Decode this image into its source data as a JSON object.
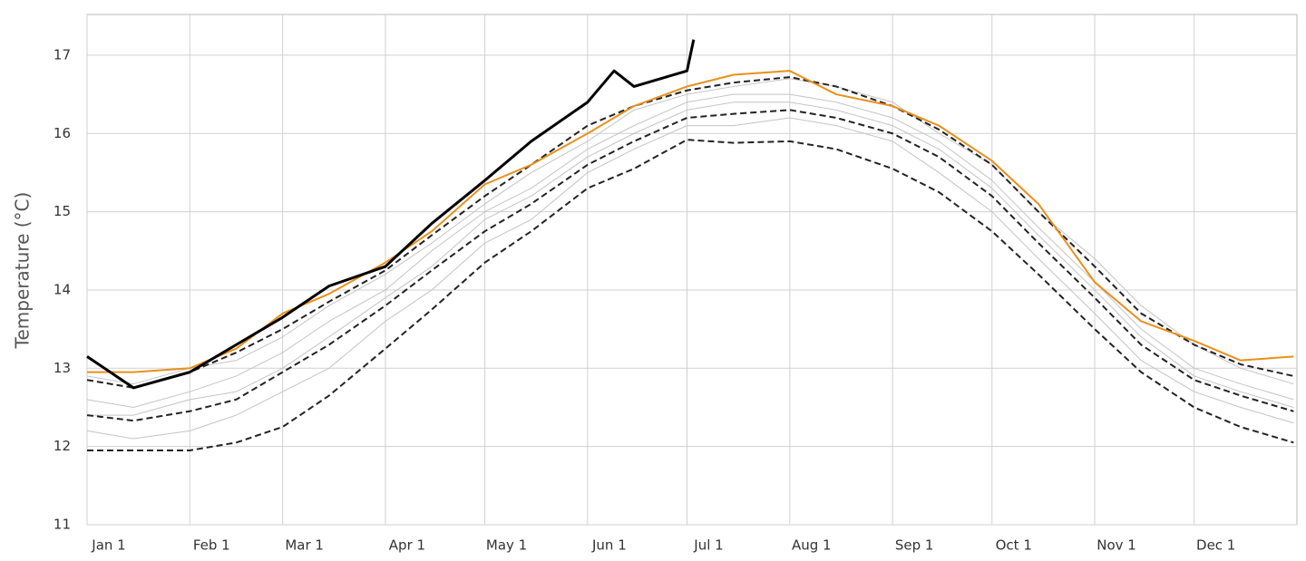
{
  "chart_data": {
    "type": "line",
    "ylabel": "Temperature (°C)",
    "x": [
      1,
      15,
      32,
      46,
      60,
      74,
      91,
      105,
      121,
      135,
      152,
      166,
      182,
      196,
      213,
      227,
      244,
      258,
      274,
      288,
      305,
      319,
      335,
      349,
      365
    ],
    "xlim": [
      1,
      366
    ],
    "xticks": [
      {
        "value": 1,
        "label": "Jan 1"
      },
      {
        "value": 32,
        "label": "Feb 1"
      },
      {
        "value": 60,
        "label": "Mar 1"
      },
      {
        "value": 91,
        "label": "Apr 1"
      },
      {
        "value": 121,
        "label": "May 1"
      },
      {
        "value": 152,
        "label": "Jun 1"
      },
      {
        "value": 182,
        "label": "Jul 1"
      },
      {
        "value": 213,
        "label": "Aug 1"
      },
      {
        "value": 244,
        "label": "Sep 1"
      },
      {
        "value": 274,
        "label": "Oct 1"
      },
      {
        "value": 305,
        "label": "Nov 1"
      },
      {
        "value": 335,
        "label": "Dec 1"
      }
    ],
    "ylim": [
      11,
      17.52
    ],
    "yticks": [
      11,
      12,
      13,
      14,
      15,
      16,
      17
    ],
    "grid": true,
    "series": [
      {
        "color": "#c4c4c4",
        "width": 1,
        "values": [
          12.6,
          12.5,
          12.7,
          12.9,
          13.2,
          13.6,
          14.0,
          14.5,
          15.0,
          15.3,
          15.8,
          16.1,
          16.4,
          16.5,
          16.5,
          16.4,
          16.2,
          15.9,
          15.4,
          14.8,
          14.1,
          13.5,
          13.0,
          12.8,
          12.6
        ]
      },
      {
        "color": "#c4c4c4",
        "width": 1,
        "values": [
          12.2,
          12.1,
          12.2,
          12.4,
          12.7,
          13.0,
          13.6,
          14.0,
          14.6,
          14.9,
          15.5,
          15.8,
          16.1,
          16.1,
          16.2,
          16.1,
          15.9,
          15.5,
          15.0,
          14.4,
          13.7,
          13.1,
          12.7,
          12.5,
          12.3
        ]
      },
      {
        "color": "#c4c4c4",
        "width": 1,
        "values": [
          12.9,
          12.8,
          13.0,
          13.1,
          13.4,
          13.8,
          14.2,
          14.6,
          15.1,
          15.5,
          15.9,
          16.3,
          16.5,
          16.6,
          16.7,
          16.6,
          16.4,
          16.0,
          15.6,
          15.0,
          14.4,
          13.8,
          13.3,
          13.0,
          12.8
        ]
      },
      {
        "color": "#c4c4c4",
        "width": 1,
        "values": [
          12.4,
          12.4,
          12.6,
          12.7,
          13.0,
          13.4,
          13.9,
          14.3,
          14.9,
          15.2,
          15.7,
          16.0,
          16.3,
          16.4,
          16.4,
          16.3,
          16.1,
          15.8,
          15.3,
          14.7,
          14.0,
          13.4,
          12.9,
          12.7,
          12.5
        ]
      },
      {
        "color": "#222222",
        "width": 2,
        "dash": true,
        "values": [
          12.85,
          12.75,
          12.95,
          13.2,
          13.5,
          13.85,
          14.25,
          14.7,
          15.2,
          15.6,
          16.1,
          16.35,
          16.55,
          16.65,
          16.72,
          16.6,
          16.35,
          16.05,
          15.6,
          15.0,
          14.3,
          13.7,
          13.3,
          13.05,
          12.9
        ]
      },
      {
        "color": "#222222",
        "width": 2,
        "dash": true,
        "values": [
          12.4,
          12.33,
          12.45,
          12.6,
          12.95,
          13.3,
          13.8,
          14.25,
          14.75,
          15.1,
          15.6,
          15.9,
          16.2,
          16.25,
          16.3,
          16.2,
          16.0,
          15.7,
          15.2,
          14.6,
          13.9,
          13.3,
          12.85,
          12.65,
          12.45
        ]
      },
      {
        "color": "#222222",
        "width": 2,
        "dash": true,
        "values": [
          11.95,
          11.95,
          11.95,
          12.05,
          12.25,
          12.65,
          13.25,
          13.75,
          14.35,
          14.75,
          15.3,
          15.55,
          15.92,
          15.88,
          15.9,
          15.8,
          15.55,
          15.25,
          14.75,
          14.2,
          13.5,
          12.95,
          12.5,
          12.25,
          12.05
        ]
      },
      {
        "color": "#e8901c",
        "width": 2,
        "values": [
          12.95,
          12.95,
          13.0,
          13.25,
          13.7,
          13.95,
          14.35,
          14.75,
          15.35,
          15.6,
          16.0,
          16.35,
          16.6,
          16.75,
          16.8,
          16.5,
          16.35,
          16.1,
          15.65,
          15.1,
          14.1,
          13.6,
          13.35,
          13.1,
          13.15
        ]
      },
      {
        "color": "#000000",
        "width": 3,
        "x": [
          1,
          15,
          32,
          46,
          60,
          74,
          91,
          105,
          121,
          135,
          152,
          160,
          166,
          182,
          184
        ],
        "values": [
          13.15,
          12.75,
          12.95,
          13.3,
          13.65,
          14.05,
          14.3,
          14.85,
          15.4,
          15.9,
          16.4,
          16.8,
          16.6,
          16.8,
          17.2
        ]
      }
    ]
  }
}
